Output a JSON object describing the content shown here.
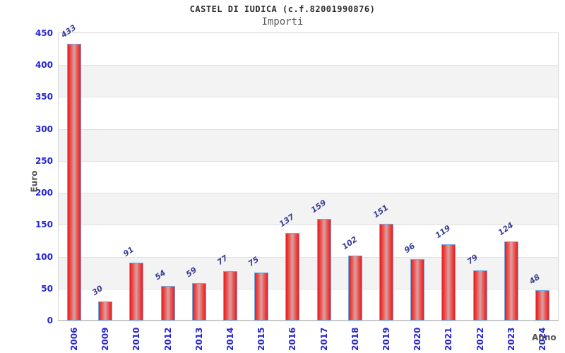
{
  "header": {
    "title": "CASTEL DI IUDICA (c.f.82001990876)",
    "subtitle": "Importi"
  },
  "chart_data": {
    "type": "bar",
    "title": "CASTEL DI IUDICA (c.f.82001990876)",
    "subtitle": "Importi",
    "categories": [
      "2006",
      "2009",
      "2010",
      "2012",
      "2013",
      "2014",
      "2015",
      "2016",
      "2017",
      "2018",
      "2019",
      "2020",
      "2021",
      "2022",
      "2023",
      "2024"
    ],
    "values": [
      433,
      30,
      91,
      54,
      59,
      77,
      75,
      137,
      159,
      102,
      151,
      96,
      119,
      79,
      124,
      48
    ],
    "xlabel": "Anno",
    "ylabel": "Euro",
    "ylim": [
      0,
      450
    ],
    "yticks": [
      0,
      50,
      100,
      150,
      200,
      250,
      300,
      350,
      400,
      450
    ],
    "grid": "horizontal-bands",
    "legend": "none",
    "colors": {
      "bar_edge": "#e51d1d",
      "bar_center": "#d5a4a4",
      "bar_border": "#71a9df",
      "tick_label_blue": "#2525d6",
      "value_label_navy": "#363c96",
      "axis_text_gray": "#555555",
      "band_gray": "#f3f3f3",
      "gridline_gray": "#e0e0e0"
    }
  }
}
